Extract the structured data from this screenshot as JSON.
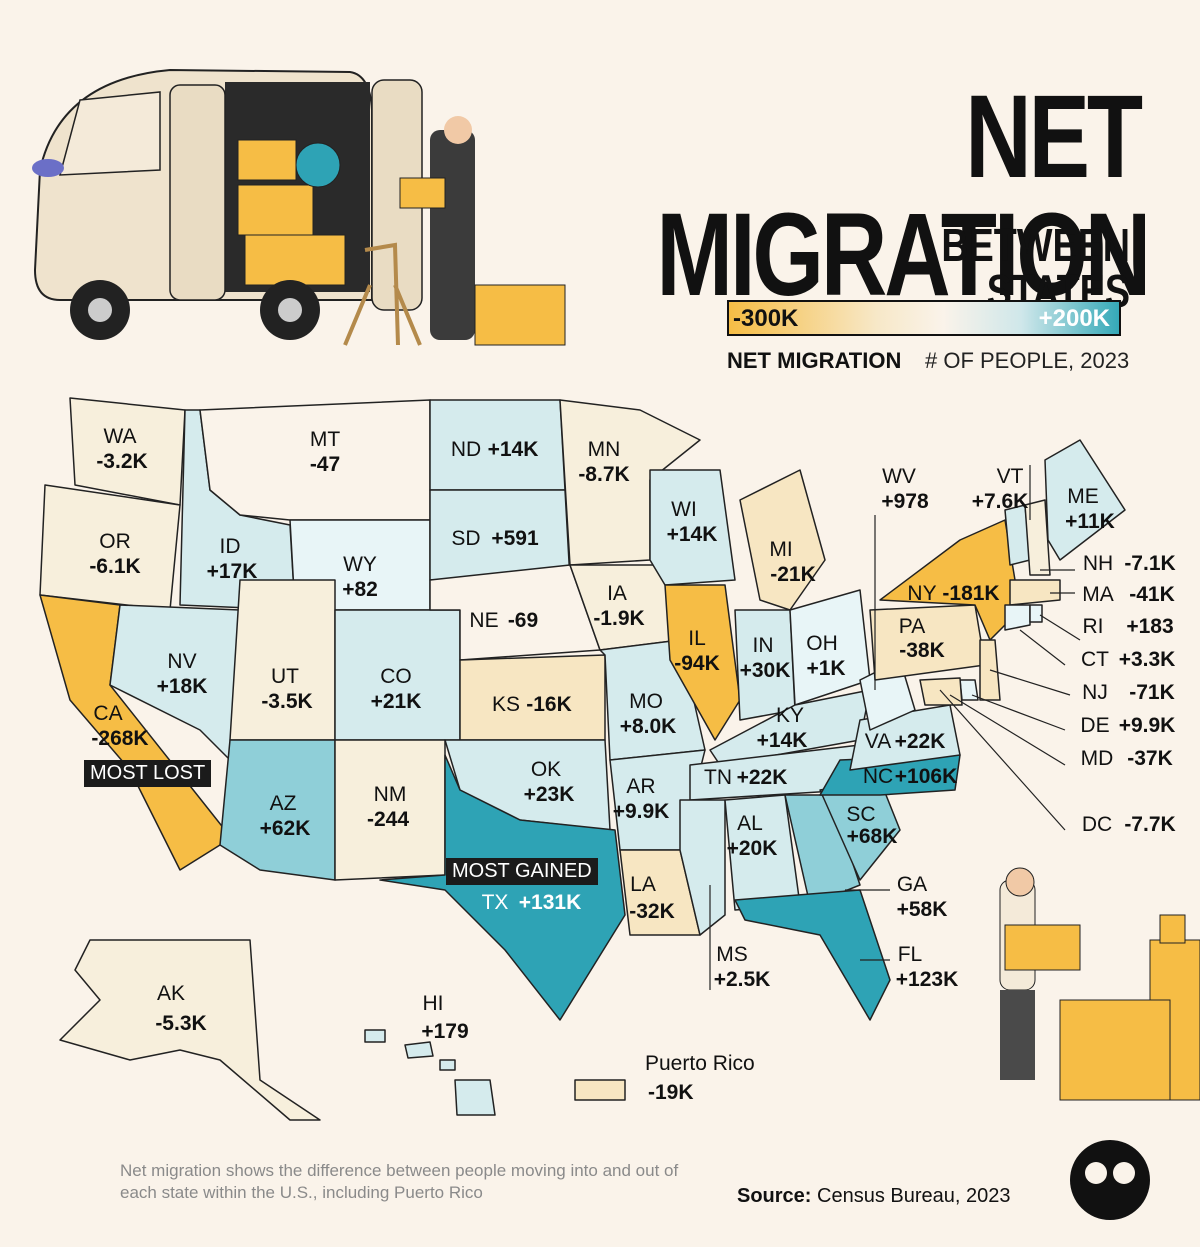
{
  "title": "NET MIGRATION",
  "subtitle": "BETWEEN STATES",
  "legend": {
    "min": "-300K",
    "max": "+200K",
    "label": "NET MIGRATION",
    "unit": "# OF PEOPLE, 2023"
  },
  "colors": {
    "loss_strong": "#f6bd45",
    "loss_light": "#f7e6c2",
    "neutral": "#f7efdc",
    "gain_light": "#d5ebed",
    "gain_mid": "#8fcfd8",
    "gain_strong": "#2ea3b5"
  },
  "tags": {
    "most_lost": "MOST LOST",
    "most_gained": "MOST GAINED"
  },
  "states": [
    {
      "abbr": "WA",
      "value": "-3.2K"
    },
    {
      "abbr": "OR",
      "value": "-6.1K"
    },
    {
      "abbr": "CA",
      "value": "-268K"
    },
    {
      "abbr": "ID",
      "value": "+17K"
    },
    {
      "abbr": "NV",
      "value": "+18K"
    },
    {
      "abbr": "MT",
      "value": "-47"
    },
    {
      "abbr": "WY",
      "value": "+82"
    },
    {
      "abbr": "UT",
      "value": "-3.5K"
    },
    {
      "abbr": "AZ",
      "value": "+62K"
    },
    {
      "abbr": "CO",
      "value": "+21K"
    },
    {
      "abbr": "NM",
      "value": "-244"
    },
    {
      "abbr": "ND",
      "value": "+14K"
    },
    {
      "abbr": "SD",
      "value": "+591"
    },
    {
      "abbr": "NE",
      "value": "-69"
    },
    {
      "abbr": "KS",
      "value": "-16K"
    },
    {
      "abbr": "OK",
      "value": "+23K"
    },
    {
      "abbr": "TX",
      "value": "+131K"
    },
    {
      "abbr": "MN",
      "value": "-8.7K"
    },
    {
      "abbr": "IA",
      "value": "-1.9K"
    },
    {
      "abbr": "MO",
      "value": "+8.0K"
    },
    {
      "abbr": "AR",
      "value": "+9.9K"
    },
    {
      "abbr": "LA",
      "value": "-32K"
    },
    {
      "abbr": "WI",
      "value": "+14K"
    },
    {
      "abbr": "IL",
      "value": "-94K"
    },
    {
      "abbr": "MI",
      "value": "-21K"
    },
    {
      "abbr": "IN",
      "value": "+30K"
    },
    {
      "abbr": "OH",
      "value": "+1K"
    },
    {
      "abbr": "KY",
      "value": "+14K"
    },
    {
      "abbr": "TN",
      "value": "+22K"
    },
    {
      "abbr": "MS",
      "value": "+2.5K"
    },
    {
      "abbr": "AL",
      "value": "+20K"
    },
    {
      "abbr": "GA",
      "value": "+58K"
    },
    {
      "abbr": "FL",
      "value": "+123K"
    },
    {
      "abbr": "SC",
      "value": "+68K"
    },
    {
      "abbr": "NC",
      "value": "+106K"
    },
    {
      "abbr": "VA",
      "value": "+22K"
    },
    {
      "abbr": "WV",
      "value": "+978"
    },
    {
      "abbr": "PA",
      "value": "-38K"
    },
    {
      "abbr": "NY",
      "value": "-181K"
    },
    {
      "abbr": "VT",
      "value": "+7.6K"
    },
    {
      "abbr": "ME",
      "value": "+11K"
    },
    {
      "abbr": "NH",
      "value": "-7.1K"
    },
    {
      "abbr": "MA",
      "value": "-41K"
    },
    {
      "abbr": "RI",
      "value": "+183"
    },
    {
      "abbr": "CT",
      "value": "+3.3K"
    },
    {
      "abbr": "NJ",
      "value": "-71K"
    },
    {
      "abbr": "DE",
      "value": "+9.9K"
    },
    {
      "abbr": "MD",
      "value": "-37K"
    },
    {
      "abbr": "DC",
      "value": "-7.7K"
    },
    {
      "abbr": "AK",
      "value": "-5.3K"
    },
    {
      "abbr": "HI",
      "value": "+179"
    }
  ],
  "puerto_rico": {
    "name": "Puerto Rico",
    "value": "-19K"
  },
  "footnote": "Net migration shows the difference between people moving into and out of each state within the U.S., including Puerto Rico",
  "source": {
    "label": "Source:",
    "text": "Census Bureau, 2023"
  }
}
